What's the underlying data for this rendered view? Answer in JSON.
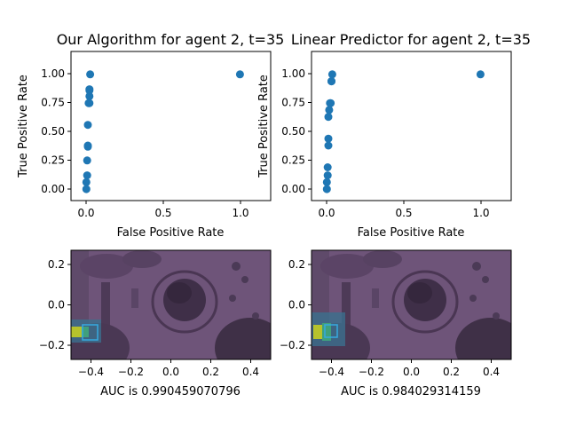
{
  "chart_data": [
    {
      "type": "scatter",
      "title": "Our Algorithm for agent 2, t=35",
      "xlabel": "False Positive Rate",
      "ylabel": "True Positive Rate",
      "xlim": [
        -0.1,
        1.2
      ],
      "ylim": [
        -0.1,
        1.2
      ],
      "xticks": [
        "0.0",
        "0.5",
        "1.0"
      ],
      "yticks": [
        "0.00",
        "0.25",
        "0.50",
        "0.75",
        "1.00"
      ],
      "color": "#1f77b4",
      "x": [
        0.0,
        0.0,
        0.005,
        0.005,
        0.01,
        0.01,
        0.01,
        0.015,
        0.02,
        0.02,
        0.02,
        0.02,
        0.025,
        1.0
      ],
      "y": [
        0.0,
        0.06,
        0.12,
        0.25,
        0.37,
        0.38,
        0.56,
        0.75,
        0.75,
        0.81,
        0.87,
        0.86,
        1.0,
        1.0
      ]
    },
    {
      "type": "scatter",
      "title": "Linear Predictor for agent 2, t=35",
      "xlabel": "False Positive Rate",
      "ylabel": "True Positive Rate",
      "xlim": [
        -0.1,
        1.2
      ],
      "ylim": [
        -0.1,
        1.2
      ],
      "xticks": [
        "0.0",
        "0.5",
        "1.0"
      ],
      "yticks": [
        "0.00",
        "0.25",
        "0.50",
        "0.75",
        "1.00"
      ],
      "color": "#1f77b4",
      "x": [
        0.0,
        0.0,
        0.005,
        0.005,
        0.01,
        0.01,
        0.01,
        0.015,
        0.02,
        0.025,
        0.03,
        0.03,
        0.035,
        1.0
      ],
      "y": [
        0.0,
        0.06,
        0.12,
        0.19,
        0.38,
        0.44,
        0.63,
        0.69,
        0.75,
        0.75,
        0.94,
        0.94,
        1.0,
        1.0
      ]
    },
    {
      "type": "heatmap",
      "caption": "AUC is 0.990459070796",
      "xlim": [
        -0.5,
        0.5
      ],
      "ylim": [
        -0.28,
        0.28
      ],
      "xticks": [
        "−0.4",
        "−0.2",
        "0.0",
        "0.2",
        "0.4"
      ],
      "yticks": [
        "−0.2",
        "0.0",
        "0.2"
      ],
      "background_tint": "#6b4f78"
    },
    {
      "type": "heatmap",
      "caption": "AUC is 0.984029314159",
      "xlim": [
        -0.5,
        0.5
      ],
      "ylim": [
        -0.28,
        0.28
      ],
      "xticks": [
        "−0.4",
        "−0.2",
        "0.0",
        "0.2",
        "0.4"
      ],
      "yticks": [
        "−0.2",
        "0.0",
        "0.2"
      ],
      "background_tint": "#6b4f78"
    }
  ]
}
